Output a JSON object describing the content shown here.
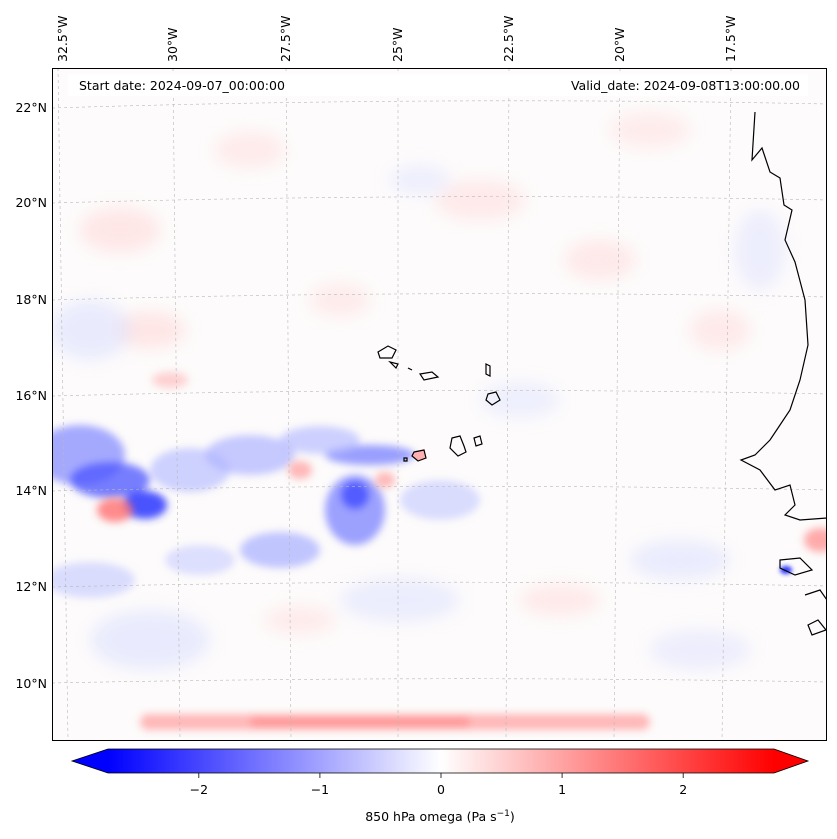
{
  "map": {
    "start_date": "Start date: 2024-09-07_00:00:00",
    "valid_date": "Valid_date: 2024-09-08T13:00:00.00",
    "lon_labels": [
      "32.5°W",
      "30°W",
      "27.5°W",
      "25°W",
      "22.5°W",
      "20°W",
      "17.5°W"
    ],
    "lat_labels": [
      "22°N",
      "20°N",
      "18°N",
      "16°N",
      "14°N",
      "12°N",
      "10°N"
    ],
    "variable": "850 hPa omega",
    "colors": {
      "negative": "#0000ff",
      "zero": "#ffffff",
      "positive": "#ff0000",
      "coast": "#000000",
      "grid": "#b0b0b0"
    }
  },
  "colorbar": {
    "label": "850 hPa omega (Pa s",
    "label_exp": "−1",
    "label_close": ")",
    "ticks": [
      "−2",
      "−1",
      "0",
      "1",
      "2"
    ],
    "vmin": -2.75,
    "vmax": 2.75
  }
}
